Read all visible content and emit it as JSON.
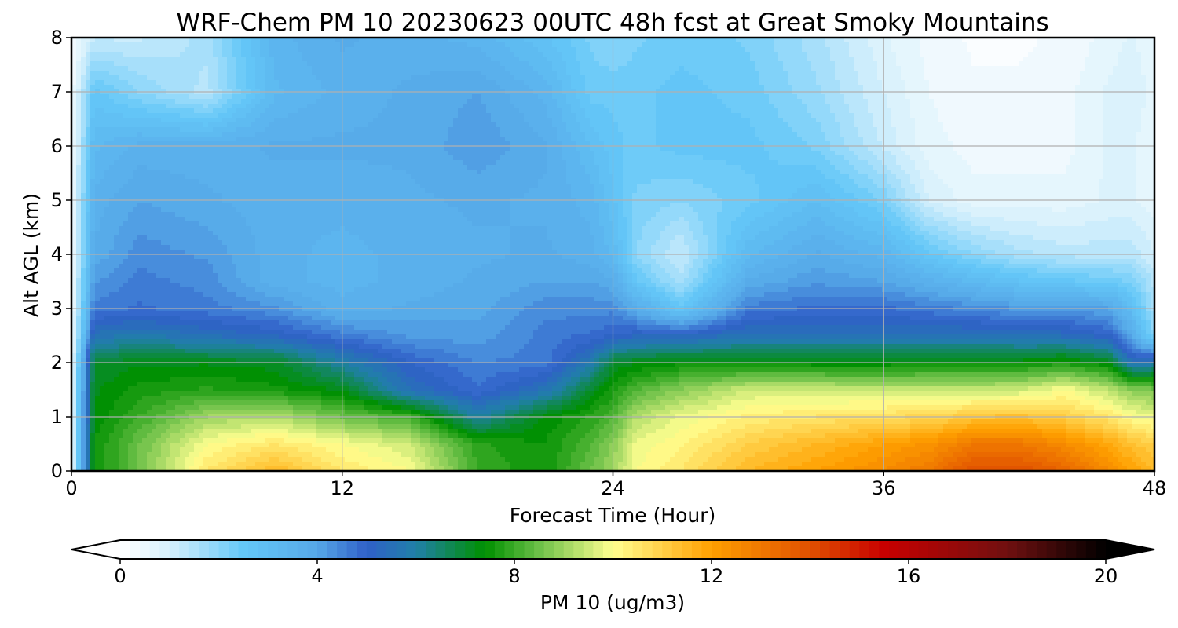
{
  "chart_data": {
    "type": "heatmap",
    "title": "WRF-Chem PM 10  20230623 00UTC 48h fcst at Great Smoky Mountains",
    "xlabel": "Forecast Time (Hour)",
    "ylabel": "Alt AGL (km)",
    "xlim": [
      0,
      48
    ],
    "ylim": [
      0,
      8
    ],
    "xticks": [
      0,
      12,
      24,
      36,
      48
    ],
    "yticks": [
      0,
      1,
      2,
      3,
      4,
      5,
      6,
      7,
      8
    ],
    "grid": true,
    "x": [
      0,
      1,
      3,
      6,
      9,
      12,
      15,
      18,
      21,
      23,
      24,
      25,
      27,
      30,
      33,
      36,
      38,
      40,
      42,
      44,
      46,
      47,
      48
    ],
    "y": [
      0,
      0.5,
      1,
      1.5,
      2,
      2.5,
      3,
      3.5,
      4,
      5,
      6,
      7,
      8
    ],
    "z": [
      [
        0.5,
        7.5,
        8.5,
        10.5,
        11.5,
        10.5,
        10.0,
        8.0,
        7.5,
        8.5,
        9.0,
        10.0,
        10.5,
        11.5,
        12.0,
        12.5,
        13.0,
        14.0,
        14.0,
        13.5,
        12.5,
        12.0,
        11.5
      ],
      [
        0.5,
        7.5,
        8.5,
        10.0,
        10.5,
        10.0,
        9.5,
        7.8,
        7.5,
        8.2,
        8.8,
        9.8,
        10.2,
        11.0,
        11.5,
        12.0,
        12.3,
        13.0,
        13.0,
        12.5,
        11.8,
        11.3,
        11.0
      ],
      [
        0.5,
        7.3,
        8.0,
        9.0,
        9.2,
        8.5,
        8.0,
        6.0,
        7.3,
        7.8,
        8.2,
        9.2,
        9.8,
        10.3,
        10.5,
        10.7,
        10.8,
        11.2,
        11.3,
        11.0,
        10.5,
        10.0,
        9.8
      ],
      [
        0.5,
        7.2,
        7.6,
        7.8,
        7.6,
        7.2,
        5.5,
        4.8,
        5.6,
        7.0,
        7.6,
        8.2,
        8.8,
        9.5,
        9.5,
        9.4,
        9.4,
        9.4,
        9.5,
        10.0,
        9.3,
        8.8,
        8.6
      ],
      [
        0.4,
        7.0,
        7.2,
        7.2,
        7.1,
        6.0,
        5.0,
        4.5,
        4.6,
        5.8,
        7.0,
        7.2,
        7.4,
        7.4,
        7.3,
        7.3,
        7.4,
        7.4,
        7.4,
        7.6,
        7.2,
        5.5,
        5.8
      ],
      [
        0.3,
        5.6,
        5.8,
        5.5,
        5.2,
        4.6,
        4.2,
        4.1,
        4.6,
        4.8,
        5.0,
        5.2,
        5.2,
        5.6,
        5.6,
        5.6,
        5.6,
        5.6,
        5.5,
        5.4,
        5.0,
        3.8,
        2.0
      ],
      [
        0.3,
        4.6,
        4.8,
        4.6,
        4.3,
        3.6,
        3.8,
        3.9,
        4.4,
        4.4,
        4.4,
        3.8,
        2.6,
        4.6,
        4.8,
        4.8,
        4.6,
        4.4,
        4.2,
        4.2,
        4.0,
        3.0,
        1.6
      ],
      [
        0.3,
        4.2,
        4.6,
        4.4,
        3.6,
        3.4,
        3.6,
        3.8,
        4.0,
        4.0,
        3.8,
        2.6,
        1.6,
        3.8,
        4.2,
        4.0,
        3.6,
        3.2,
        2.8,
        2.6,
        2.4,
        2.2,
        1.4
      ],
      [
        0.3,
        3.8,
        4.4,
        4.2,
        3.6,
        3.4,
        3.6,
        3.7,
        3.8,
        3.6,
        3.2,
        2.0,
        1.2,
        3.2,
        3.8,
        3.4,
        2.6,
        2.0,
        1.6,
        1.4,
        1.4,
        1.4,
        1.0
      ],
      [
        0.3,
        3.6,
        4.0,
        3.8,
        3.6,
        3.6,
        3.7,
        3.8,
        3.7,
        3.4,
        2.8,
        2.2,
        2.0,
        2.4,
        3.0,
        2.2,
        1.0,
        0.6,
        0.6,
        0.6,
        0.8,
        0.8,
        0.6
      ],
      [
        0.3,
        3.2,
        3.6,
        3.6,
        3.8,
        3.8,
        3.8,
        4.2,
        3.8,
        3.0,
        2.6,
        2.4,
        2.6,
        2.6,
        2.2,
        1.2,
        0.6,
        0.4,
        0.4,
        0.4,
        0.8,
        0.8,
        0.5
      ],
      [
        0.3,
        2.6,
        2.0,
        1.4,
        3.2,
        3.6,
        3.8,
        4.0,
        3.4,
        2.4,
        2.4,
        2.4,
        2.6,
        2.4,
        1.8,
        1.0,
        0.5,
        0.3,
        0.3,
        0.4,
        0.8,
        1.0,
        0.6
      ],
      [
        0.2,
        1.2,
        1.2,
        1.6,
        3.4,
        3.8,
        3.6,
        3.4,
        2.8,
        2.2,
        2.0,
        2.2,
        2.4,
        2.2,
        1.6,
        0.8,
        0.4,
        0.2,
        0.2,
        0.3,
        0.6,
        0.8,
        0.5
      ]
    ]
  },
  "colorbar": {
    "label": "PM 10  (ug/m3)",
    "min": 0,
    "max": 20,
    "ticks": [
      0,
      4,
      8,
      12,
      16,
      20
    ],
    "extend": "both",
    "stops": [
      {
        "v": -1,
        "c": "#ffffff"
      },
      {
        "v": 0,
        "c": "#ffffff"
      },
      {
        "v": 1,
        "c": "#d6f0fc"
      },
      {
        "v": 2.5,
        "c": "#64c8f8"
      },
      {
        "v": 4,
        "c": "#56a8e8"
      },
      {
        "v": 5,
        "c": "#3060c8"
      },
      {
        "v": 6,
        "c": "#2080a8"
      },
      {
        "v": 7.4,
        "c": "#009000"
      },
      {
        "v": 8.5,
        "c": "#6cc048"
      },
      {
        "v": 10,
        "c": "#ffff90"
      },
      {
        "v": 12,
        "c": "#ffa000"
      },
      {
        "v": 14,
        "c": "#e05000"
      },
      {
        "v": 15.5,
        "c": "#c80000"
      },
      {
        "v": 18,
        "c": "#701010"
      },
      {
        "v": 20,
        "c": "#000000"
      },
      {
        "v": 21,
        "c": "#000000"
      }
    ]
  }
}
